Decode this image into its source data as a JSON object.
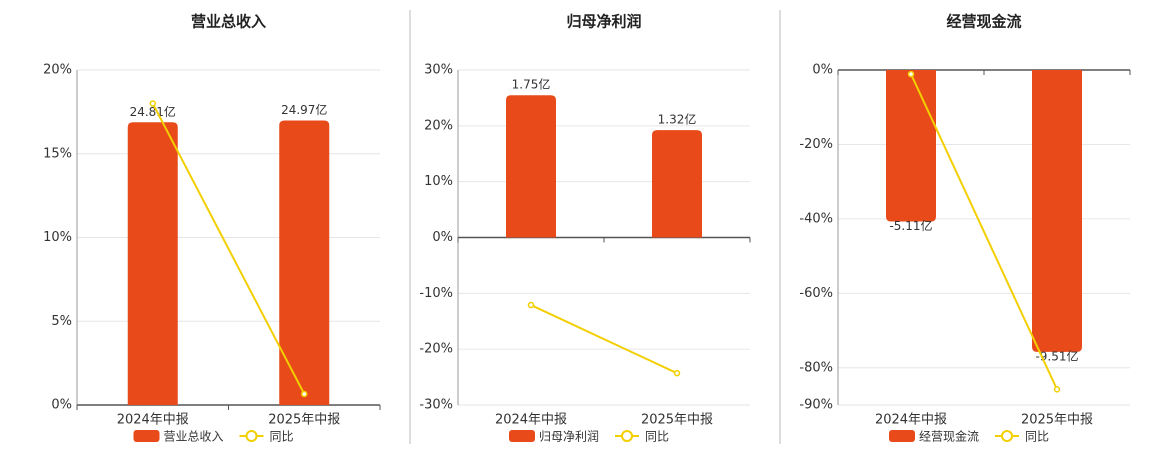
{
  "chart_data": [
    {
      "type": "bar",
      "title": "营业总收入",
      "categories": [
        "2024年中报",
        "2025年中报"
      ],
      "series": [
        {
          "name": "营业总收入",
          "color": "#e84a1a",
          "axis": "y2",
          "values": [
            24.81,
            24.97
          ],
          "value_labels": [
            "24.81亿",
            "24.97亿"
          ]
        },
        {
          "name": "同比",
          "type": "line",
          "color": "#f2cf00",
          "values": [
            18.0,
            0.66
          ]
        }
      ],
      "ylim": [
        0,
        20
      ],
      "yticks": [
        {
          "value": 0,
          "label": "0%"
        },
        {
          "value": 5,
          "label": "5%"
        },
        {
          "value": 10,
          "label": "10%"
        },
        {
          "value": 15,
          "label": "15%"
        },
        {
          "value": 20,
          "label": "20%"
        }
      ],
      "y2lim": [
        0,
        29.4
      ],
      "grid": true
    },
    {
      "type": "bar",
      "title": "归母净利润",
      "categories": [
        "2024年中报",
        "2025年中报"
      ],
      "series": [
        {
          "name": "归母净利润",
          "color": "#e84a1a",
          "axis": "y2",
          "values": [
            1.75,
            1.32
          ],
          "value_labels": [
            "1.75亿",
            "1.32亿"
          ]
        },
        {
          "name": "同比",
          "type": "line",
          "color": "#f2cf00",
          "values": [
            -12.1,
            -24.3
          ]
        }
      ],
      "ylim": [
        -30,
        30
      ],
      "yticks": [
        {
          "value": -30,
          "label": "-30%"
        },
        {
          "value": -20,
          "label": "-20%"
        },
        {
          "value": -10,
          "label": "-10%"
        },
        {
          "value": 0,
          "label": "0%"
        },
        {
          "value": 10,
          "label": "10%"
        },
        {
          "value": 20,
          "label": "20%"
        },
        {
          "value": 30,
          "label": "30%"
        }
      ],
      "y2lim": [
        -2.06,
        2.06
      ],
      "grid": true
    },
    {
      "type": "bar",
      "title": "经营现金流",
      "categories": [
        "2024年中报",
        "2025年中报"
      ],
      "series": [
        {
          "name": "经营现金流",
          "color": "#e84a1a",
          "axis": "y2",
          "values": [
            -5.11,
            -9.51
          ],
          "value_labels": [
            "-5.11亿",
            "-9.51亿"
          ]
        },
        {
          "name": "同比",
          "type": "line",
          "color": "#f2cf00",
          "values": [
            -1.1,
            -85.8
          ]
        }
      ],
      "ylim": [
        -90,
        0
      ],
      "yticks": [
        {
          "value": -90,
          "label": "-90%"
        },
        {
          "value": -80,
          "label": "-80%"
        },
        {
          "value": -60,
          "label": "-60%"
        },
        {
          "value": -40,
          "label": "-40%"
        },
        {
          "value": -20,
          "label": "-20%"
        },
        {
          "value": 0,
          "label": "0%"
        }
      ],
      "y2lim": [
        -11.3,
        0
      ],
      "grid": true
    }
  ]
}
